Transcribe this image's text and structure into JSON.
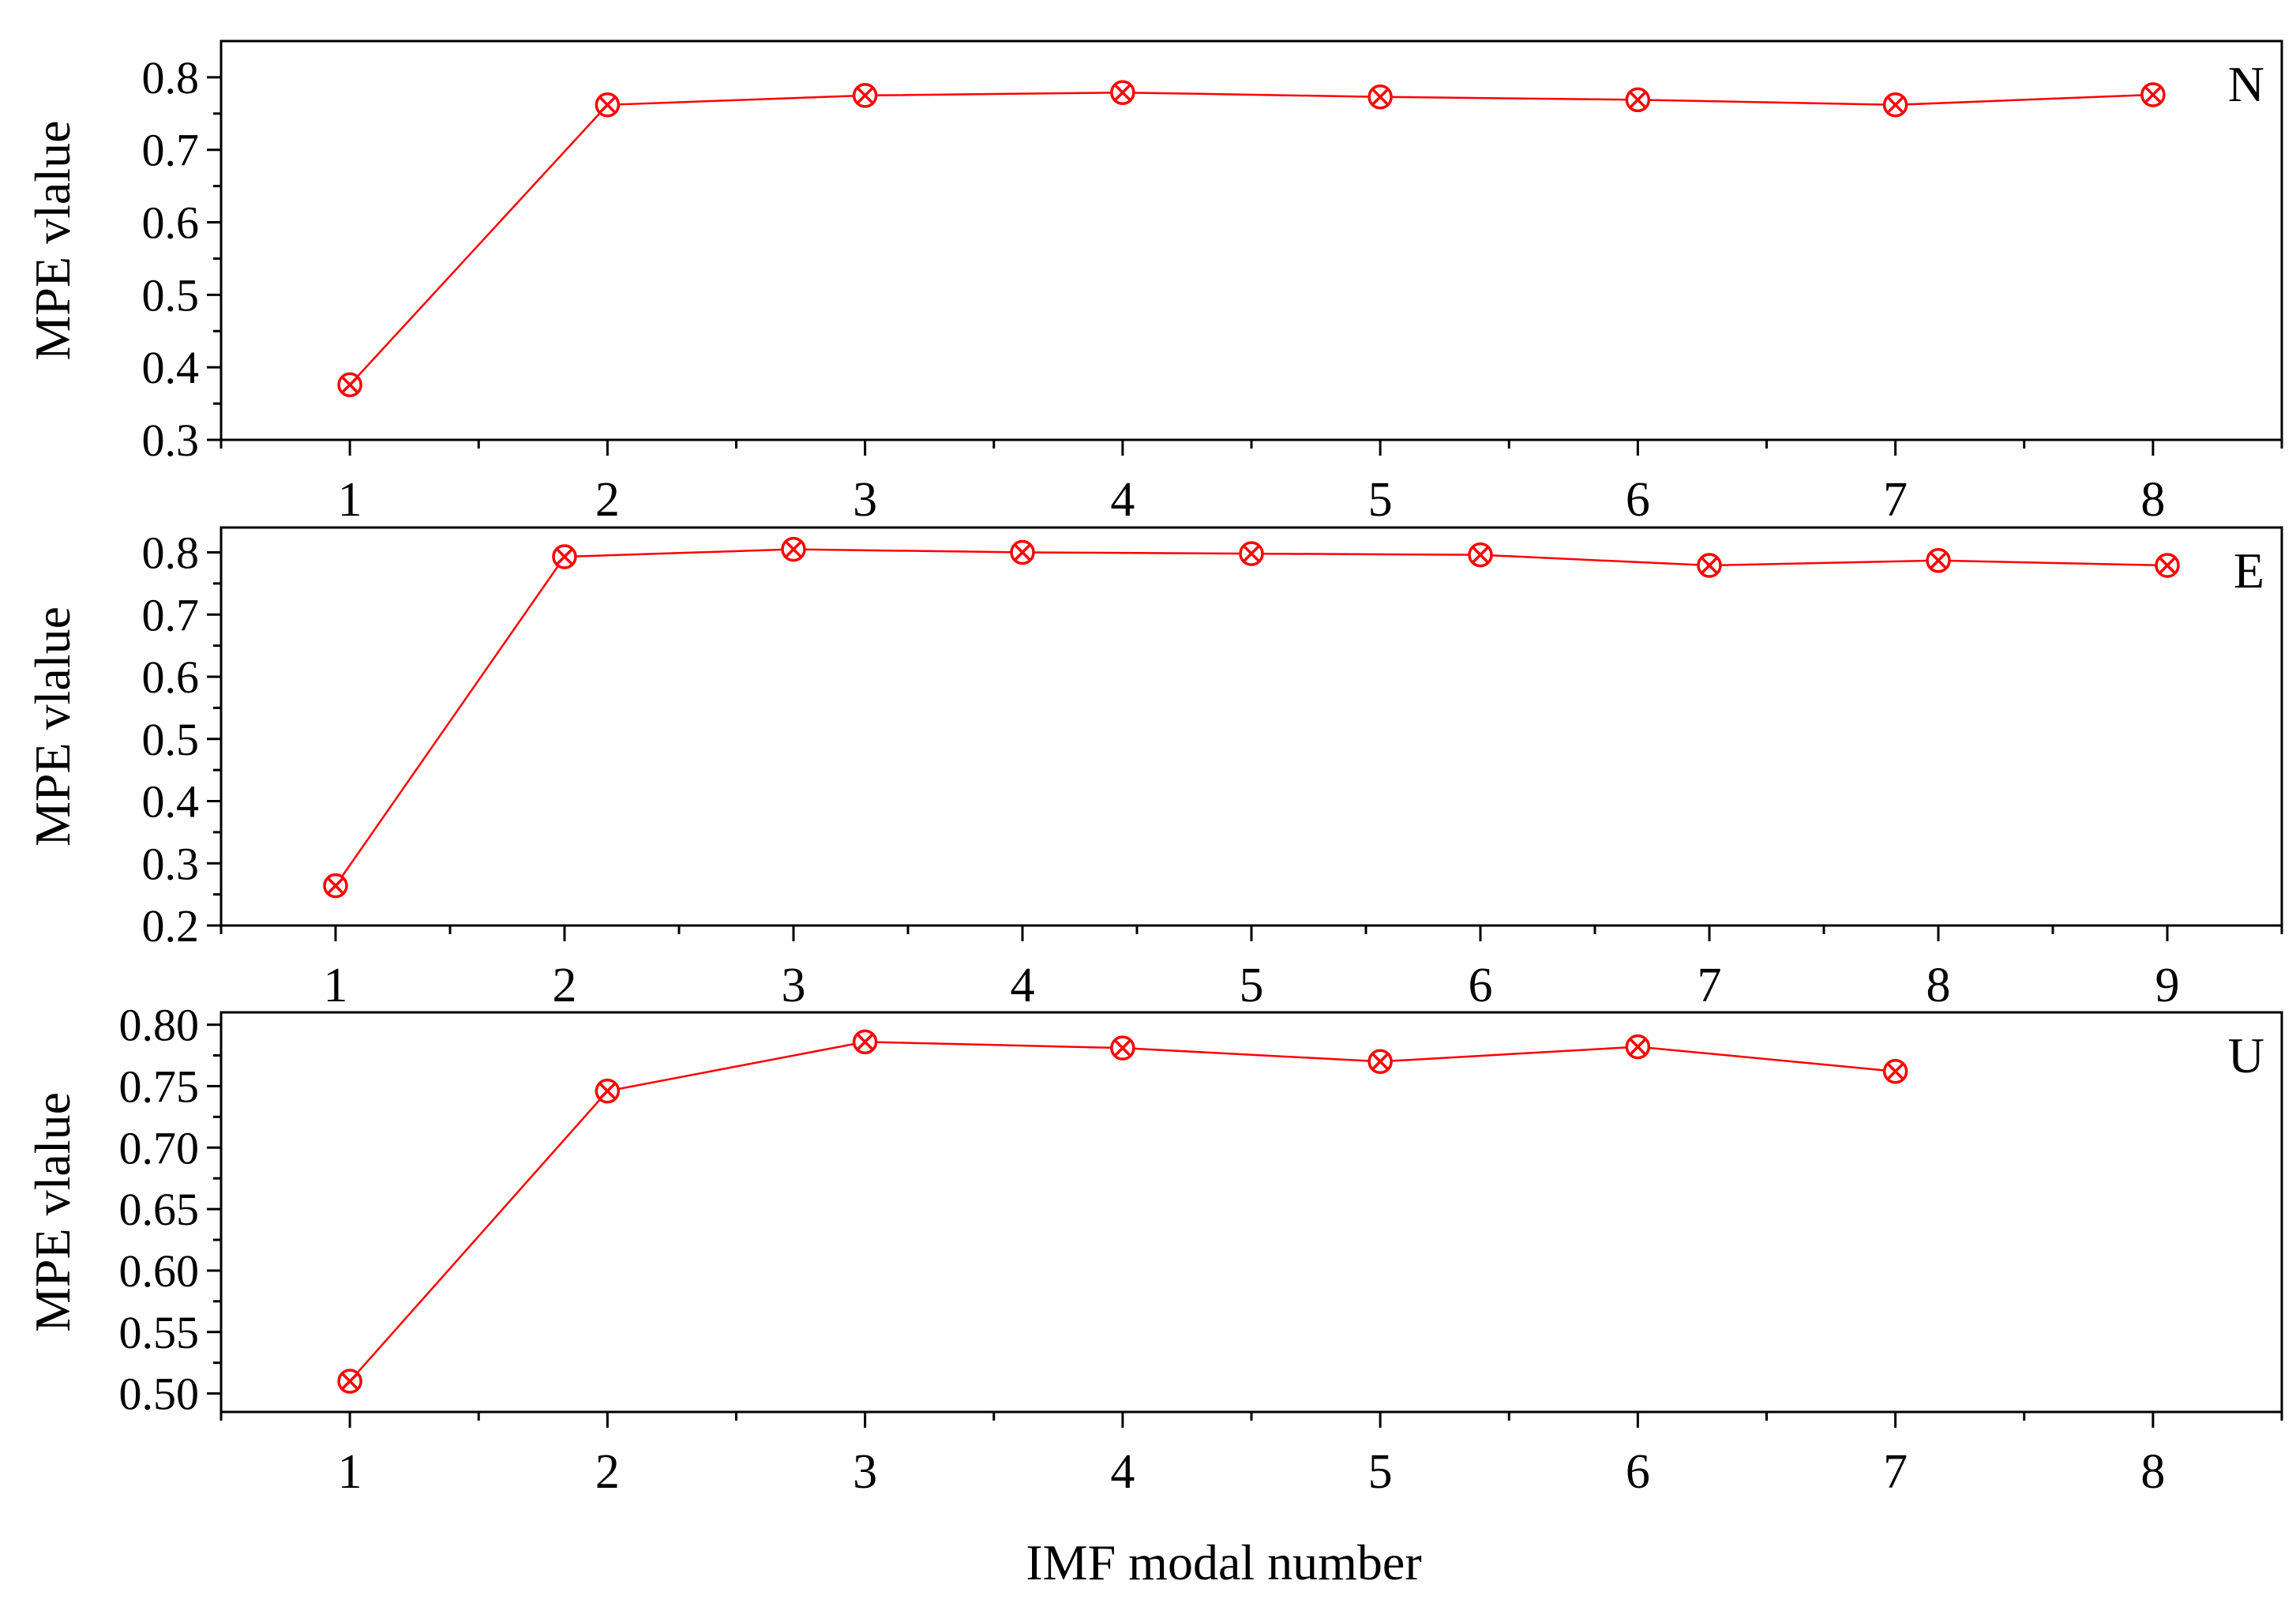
{
  "figure": {
    "xlabel": "IMF modal number",
    "series_color": "#ff0000"
  },
  "chart_data": [
    {
      "type": "line",
      "panel_label": "N",
      "ylabel": "MPE vlalue",
      "xlabel": "",
      "x": [
        1,
        2,
        3,
        4,
        5,
        6,
        7,
        8
      ],
      "values": [
        0.376,
        0.762,
        0.775,
        0.779,
        0.773,
        0.769,
        0.762,
        0.776
      ],
      "xlim": [
        0.5,
        8.5
      ],
      "ylim": [
        0.3,
        0.85
      ],
      "xticks": [
        1,
        2,
        3,
        4,
        5,
        6,
        7,
        8
      ],
      "yticks": [
        0.3,
        0.4,
        0.5,
        0.6,
        0.7,
        0.8
      ],
      "ytick_labels": [
        "0.3",
        "0.4",
        "0.5",
        "0.6",
        "0.7",
        "0.8"
      ],
      "marker": "circle-x",
      "grid": false
    },
    {
      "type": "line",
      "panel_label": "E",
      "ylabel": "MPE vlalue",
      "xlabel": "",
      "x": [
        1,
        2,
        3,
        4,
        5,
        6,
        7,
        8,
        9
      ],
      "values": [
        0.264,
        0.793,
        0.805,
        0.8,
        0.798,
        0.796,
        0.779,
        0.787,
        0.779
      ],
      "xlim": [
        0.5,
        9.5
      ],
      "ylim": [
        0.2,
        0.84
      ],
      "xticks": [
        1,
        2,
        3,
        4,
        5,
        6,
        7,
        8,
        9
      ],
      "yticks": [
        0.2,
        0.3,
        0.4,
        0.5,
        0.6,
        0.7,
        0.8
      ],
      "ytick_labels": [
        "0.2",
        "0.3",
        "0.4",
        "0.5",
        "0.6",
        "0.7",
        "0.8"
      ],
      "marker": "circle-x",
      "grid": false
    },
    {
      "type": "line",
      "panel_label": "U",
      "ylabel": "MPE vlalue",
      "xlabel": "IMF modal number",
      "x": [
        1,
        2,
        3,
        4,
        5,
        6,
        7
      ],
      "values": [
        0.51,
        0.746,
        0.786,
        0.781,
        0.77,
        0.782,
        0.762
      ],
      "xlim": [
        0.5,
        8.5
      ],
      "ylim": [
        0.485,
        0.81
      ],
      "xticks": [
        1,
        2,
        3,
        4,
        5,
        6,
        7,
        8
      ],
      "yticks": [
        0.5,
        0.55,
        0.6,
        0.65,
        0.7,
        0.75,
        0.8
      ],
      "ytick_labels": [
        "0.50",
        "0.55",
        "0.60",
        "0.65",
        "0.70",
        "0.75",
        "0.80"
      ],
      "marker": "circle-x",
      "grid": false
    }
  ]
}
